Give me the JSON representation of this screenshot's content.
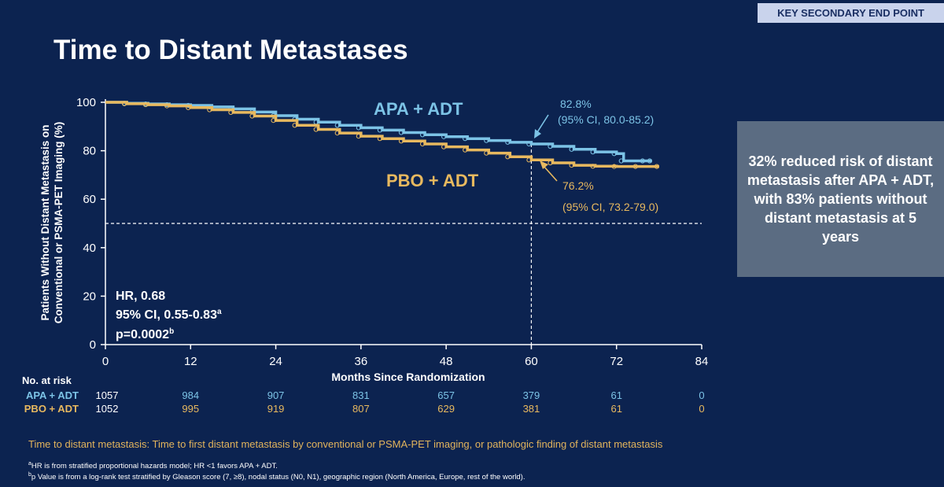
{
  "badge": "KEY SECONDARY END POINT",
  "title": "Time to Distant Metastases",
  "summary": "32% reduced risk of distant metastasis after APA + ADT, with 83% patients without distant metastasis at 5 years",
  "definition": "Time to distant metastasis: Time to first distant metastasis by conventional or PSMA-PET imaging, or pathologic finding of distant metastasis",
  "footnotes": {
    "a_mark": "a",
    "a_text": "HR is from stratified proportional hazards model; HR <1 favors APA + ADT.",
    "b_mark": "b",
    "b_text": "p Value is from a log-rank test stratified by Gleason score (7, ≥8), nodal status (N0, N1), geographic region (North America, Europe, rest of the world)."
  },
  "colors": {
    "background": "#0c2350",
    "apa": "#7cc3e6",
    "pbo": "#e8b95f",
    "axis": "#ffffff"
  },
  "chart_data": {
    "type": "line",
    "xlabel": "Months Since Randomization",
    "ylabel_line1": "Patients Without Distant Metastasis on",
    "ylabel_line2": "Conventional or PSMA-PET Imaging (%)",
    "xlim": [
      0,
      84
    ],
    "ylim": [
      0,
      100
    ],
    "xticks": [
      0,
      12,
      24,
      36,
      48,
      60,
      72,
      84
    ],
    "yticks": [
      0,
      20,
      40,
      60,
      80,
      100
    ],
    "reference_lines": {
      "y": 50,
      "x": 60
    },
    "series": [
      {
        "name": "APA + ADT",
        "color": "#7cc3e6",
        "x": [
          0,
          3,
          6,
          9,
          12,
          15,
          18,
          21,
          24,
          27,
          30,
          33,
          36,
          39,
          42,
          45,
          48,
          51,
          54,
          57,
          60,
          63,
          66,
          69,
          72,
          73,
          76,
          77
        ],
        "y": [
          100,
          99.6,
          99.3,
          99.0,
          98.7,
          98.1,
          97.3,
          96.0,
          94.5,
          93.0,
          91.8,
          90.5,
          89.5,
          88.5,
          87.5,
          86.6,
          85.8,
          85.0,
          84.2,
          83.5,
          82.8,
          81.8,
          80.6,
          79.5,
          78.8,
          75.8,
          75.8,
          75.8
        ]
      },
      {
        "name": "PBO + ADT",
        "color": "#e8b95f",
        "x": [
          0,
          3,
          6,
          9,
          12,
          15,
          18,
          21,
          24,
          27,
          30,
          33,
          36,
          39,
          42,
          45,
          48,
          51,
          54,
          57,
          60,
          63,
          66,
          69,
          72,
          75,
          78
        ],
        "y": [
          100,
          99.4,
          99.0,
          98.5,
          97.8,
          96.9,
          95.8,
          94.3,
          92.5,
          90.5,
          88.8,
          87.3,
          86.0,
          85.0,
          84.0,
          82.8,
          81.6,
          80.3,
          79.0,
          77.5,
          76.2,
          75.0,
          74.0,
          73.6,
          73.5,
          73.5,
          73.5
        ]
      }
    ],
    "series_labels": {
      "apa": "APA + ADT",
      "pbo": "PBO + ADT"
    },
    "annotations": {
      "apa_value": "82.8%",
      "apa_ci": "(95% CI, 80.0-85.2)",
      "pbo_value": "76.2%",
      "pbo_ci": "(95% CI, 73.2-79.0)",
      "hr": "HR, 0.68",
      "ci": "95% CI, 0.55-0.83",
      "ci_mark": "a",
      "p": "p=0.0002",
      "p_mark": "b"
    },
    "risk_table": {
      "header": "No. at risk",
      "rows": [
        {
          "label": "APA + ADT",
          "color": "#7cc3e6",
          "values": [
            "1057",
            "984",
            "907",
            "831",
            "657",
            "379",
            "61",
            "0"
          ]
        },
        {
          "label": "PBO + ADT",
          "color": "#e8b95f",
          "values": [
            "1052",
            "995",
            "919",
            "807",
            "629",
            "381",
            "61",
            "0"
          ]
        }
      ]
    }
  }
}
